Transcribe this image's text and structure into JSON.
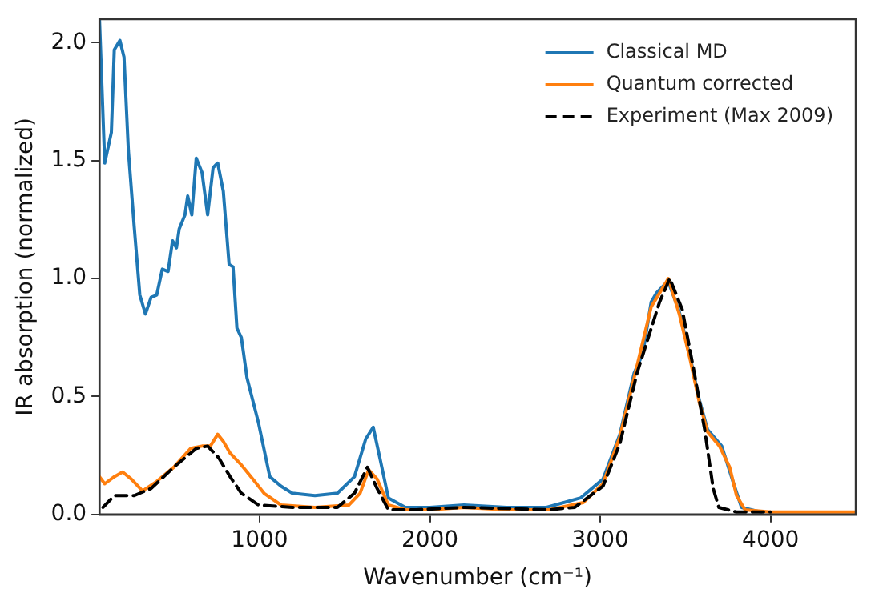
{
  "chart_data": {
    "type": "line",
    "xlabel": "Wavenumber (cm⁻¹)",
    "ylabel": "IR absorption (normalized)",
    "xlim": [
      60,
      4500
    ],
    "ylim": [
      0,
      2.1
    ],
    "xticks": [
      1000,
      2000,
      3000,
      4000
    ],
    "yticks": [
      {
        "value": 0,
        "label": "0.0"
      },
      {
        "value": 0.5,
        "label": "0.5"
      },
      {
        "value": 1,
        "label": "1.0"
      },
      {
        "value": 1.5,
        "label": "1.5"
      },
      {
        "value": 2,
        "label": "2.0"
      }
    ],
    "grid": false,
    "legend": "top right",
    "marker": "none",
    "series": [
      {
        "name": "Classical MD",
        "color": "#1f77b4",
        "line_style": "solid",
        "x": [
          60,
          91,
          130,
          147,
          180,
          204,
          230,
          264,
          297,
          330,
          363,
          396,
          429,
          463,
          489,
          512,
          528,
          562,
          578,
          602,
          628,
          662,
          695,
          727,
          754,
          787,
          821,
          844,
          867,
          893,
          926,
          993,
          1060,
          1126,
          1192,
          1325,
          1457,
          1557,
          1623,
          1667,
          1706,
          1756,
          1856,
          2000,
          2200,
          2450,
          2684,
          2884,
          3016,
          3115,
          3199,
          3249,
          3299,
          3331,
          3398,
          3464,
          3530,
          3580,
          3630,
          3713,
          3779,
          3829,
          3945
        ],
        "values": [
          2.1,
          1.49,
          1.62,
          1.97,
          2.01,
          1.94,
          1.54,
          1.22,
          0.93,
          0.85,
          0.92,
          0.93,
          1.04,
          1.03,
          1.16,
          1.13,
          1.21,
          1.27,
          1.35,
          1.27,
          1.51,
          1.45,
          1.27,
          1.47,
          1.49,
          1.37,
          1.06,
          1.05,
          0.79,
          0.75,
          0.58,
          0.39,
          0.16,
          0.12,
          0.09,
          0.08,
          0.09,
          0.16,
          0.32,
          0.37,
          0.24,
          0.07,
          0.03,
          0.03,
          0.04,
          0.03,
          0.03,
          0.07,
          0.15,
          0.34,
          0.6,
          0.68,
          0.9,
          0.94,
          0.99,
          0.86,
          0.66,
          0.49,
          0.36,
          0.29,
          0.14,
          0.03,
          0.01
        ]
      },
      {
        "name": "Quantum corrected",
        "color": "#ff7f0e",
        "line_style": "solid",
        "x": [
          60,
          91,
          147,
          196,
          247,
          313,
          396,
          496,
          595,
          662,
          711,
          754,
          787,
          827,
          893,
          960,
          1026,
          1126,
          1325,
          1524,
          1590,
          1640,
          1690,
          1756,
          1856,
          2000,
          2200,
          2450,
          2700,
          2900,
          3016,
          3115,
          3199,
          3299,
          3400,
          3464,
          3530,
          3580,
          3630,
          3700,
          3760,
          3800,
          3850,
          4000,
          4500
        ],
        "values": [
          0.16,
          0.13,
          0.16,
          0.18,
          0.15,
          0.1,
          0.14,
          0.2,
          0.28,
          0.29,
          0.29,
          0.34,
          0.31,
          0.26,
          0.21,
          0.15,
          0.09,
          0.04,
          0.03,
          0.04,
          0.09,
          0.19,
          0.15,
          0.04,
          0.02,
          0.02,
          0.03,
          0.02,
          0.02,
          0.05,
          0.13,
          0.33,
          0.58,
          0.88,
          1.0,
          0.85,
          0.65,
          0.48,
          0.35,
          0.29,
          0.2,
          0.08,
          0.02,
          0.01,
          0.01
        ]
      },
      {
        "name": "Experiment (Max 2009)",
        "color": "#000000",
        "line_style": "dashed",
        "x": [
          81,
          147,
          264,
          363,
          496,
          628,
          695,
          760,
          827,
          893,
          993,
          1192,
          1457,
          1557,
          1633,
          1690,
          1756,
          1922,
          2200,
          2700,
          2850,
          3016,
          3115,
          3216,
          3348,
          3408,
          3481,
          3547,
          3613,
          3663,
          3696,
          3800,
          4000
        ],
        "values": [
          0.03,
          0.08,
          0.08,
          0.11,
          0.2,
          0.28,
          0.29,
          0.24,
          0.16,
          0.09,
          0.04,
          0.03,
          0.03,
          0.09,
          0.2,
          0.11,
          0.02,
          0.02,
          0.03,
          0.02,
          0.03,
          0.12,
          0.3,
          0.6,
          0.9,
          1.0,
          0.87,
          0.62,
          0.36,
          0.11,
          0.03,
          0.01,
          0.01
        ]
      }
    ]
  }
}
